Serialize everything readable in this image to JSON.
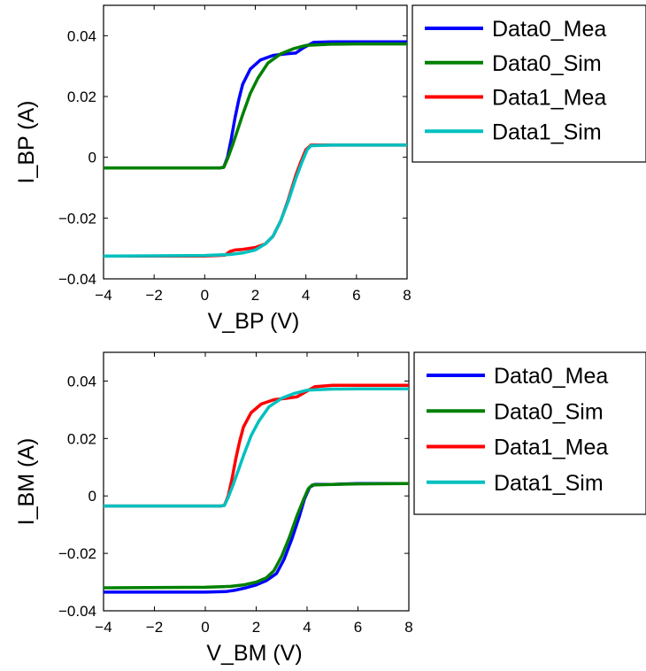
{
  "chart_data": [
    {
      "type": "line",
      "title": "",
      "xlabel": "V_BP (V)",
      "ylabel": "I_BP (A)",
      "xlim": [
        -4,
        8
      ],
      "ylim": [
        -0.04,
        0.05
      ],
      "xticks": [
        -4,
        -2,
        0,
        2,
        4,
        6,
        8
      ],
      "yticks": [
        -0.04,
        -0.02,
        0,
        0.02,
        0.04
      ],
      "xtick_labels": [
        "−4",
        "−2",
        "0",
        "2",
        "4",
        "6",
        "8"
      ],
      "ytick_labels": [
        "−0.04",
        "−0.02",
        "0",
        "0.02",
        "0.04"
      ],
      "grid": false,
      "legend_position": "outside-right",
      "series": [
        {
          "name": "Data0_Mea",
          "color": "#0000ff",
          "x": [
            -4,
            0,
            0.6,
            0.75,
            0.9,
            1.05,
            1.2,
            1.35,
            1.5,
            1.8,
            2.2,
            2.7,
            3.2,
            3.6,
            3.9,
            4.3,
            5,
            6,
            8
          ],
          "y": [
            -0.0035,
            -0.0035,
            -0.0035,
            -0.0033,
            0.0,
            0.006,
            0.013,
            0.019,
            0.024,
            0.029,
            0.032,
            0.0335,
            0.034,
            0.0343,
            0.036,
            0.0378,
            0.038,
            0.038,
            0.038
          ]
        },
        {
          "name": "Data0_Sim",
          "color": "#008000",
          "x": [
            -4,
            0,
            0.6,
            0.75,
            0.9,
            1.1,
            1.3,
            1.5,
            1.8,
            2.1,
            2.5,
            3.0,
            3.5,
            4.0,
            5,
            6,
            8
          ],
          "y": [
            -0.0035,
            -0.0035,
            -0.0035,
            -0.0033,
            -0.0005,
            0.004,
            0.009,
            0.014,
            0.021,
            0.026,
            0.031,
            0.034,
            0.0357,
            0.0368,
            0.0372,
            0.0373,
            0.0373
          ]
        },
        {
          "name": "Data1_Mea",
          "color": "#ff0000",
          "x": [
            -4,
            0,
            0.8,
            1.0,
            1.2,
            1.5,
            2.0,
            2.4,
            2.7,
            3.0,
            3.3,
            3.6,
            3.8,
            4.0,
            4.2,
            5,
            6,
            8
          ],
          "y": [
            -0.0325,
            -0.0325,
            -0.0322,
            -0.031,
            -0.0305,
            -0.0303,
            -0.0297,
            -0.0285,
            -0.026,
            -0.021,
            -0.014,
            -0.006,
            -0.0015,
            0.0025,
            0.004,
            0.004,
            0.004,
            0.004
          ]
        },
        {
          "name": "Data1_Sim",
          "color": "#00c0c0",
          "x": [
            -4,
            0,
            1.0,
            1.5,
            2.0,
            2.4,
            2.7,
            3.0,
            3.3,
            3.6,
            3.85,
            4.05,
            4.2,
            5,
            6,
            8
          ],
          "y": [
            -0.0325,
            -0.0323,
            -0.032,
            -0.0315,
            -0.0305,
            -0.0285,
            -0.026,
            -0.021,
            -0.0145,
            -0.007,
            -0.0015,
            0.0025,
            0.0038,
            0.004,
            0.004,
            0.004
          ]
        }
      ]
    },
    {
      "type": "line",
      "title": "",
      "xlabel": "V_BM (V)",
      "ylabel": "I_BM (A)",
      "xlim": [
        -4,
        8
      ],
      "ylim": [
        -0.04,
        0.05
      ],
      "xticks": [
        -4,
        -2,
        0,
        2,
        4,
        6,
        8
      ],
      "yticks": [
        -0.04,
        -0.02,
        0,
        0.02,
        0.04
      ],
      "xtick_labels": [
        "−4",
        "−2",
        "0",
        "2",
        "4",
        "6",
        "8"
      ],
      "ytick_labels": [
        "−0.04",
        "−0.02",
        "0",
        "0.02",
        "0.04"
      ],
      "grid": false,
      "legend_position": "outside-right",
      "series": [
        {
          "name": "Data0_Mea",
          "color": "#0000ff",
          "x": [
            -4,
            0,
            0.8,
            1.2,
            1.6,
            2.0,
            2.4,
            2.8,
            3.1,
            3.4,
            3.7,
            3.9,
            4.1,
            4.3,
            5,
            6,
            8
          ],
          "y": [
            -0.0335,
            -0.0335,
            -0.0333,
            -0.0328,
            -0.032,
            -0.031,
            -0.0295,
            -0.027,
            -0.022,
            -0.015,
            -0.007,
            -0.001,
            0.003,
            0.004,
            0.004,
            0.0043,
            0.0043
          ]
        },
        {
          "name": "Data0_Sim",
          "color": "#008000",
          "x": [
            -4,
            0,
            1.0,
            1.5,
            2.0,
            2.4,
            2.7,
            3.0,
            3.3,
            3.6,
            3.85,
            4.05,
            4.2,
            5,
            6,
            8
          ],
          "y": [
            -0.032,
            -0.0318,
            -0.0315,
            -0.031,
            -0.03,
            -0.0285,
            -0.026,
            -0.021,
            -0.0145,
            -0.007,
            -0.0015,
            0.0025,
            0.0038,
            0.004,
            0.0042,
            0.0043
          ]
        },
        {
          "name": "Data1_Mea",
          "color": "#ff0000",
          "x": [
            -4,
            0,
            0.6,
            0.75,
            0.9,
            1.05,
            1.2,
            1.35,
            1.5,
            1.8,
            2.2,
            2.7,
            3.2,
            3.6,
            3.9,
            4.3,
            5,
            6,
            8
          ],
          "y": [
            -0.0035,
            -0.0035,
            -0.0035,
            -0.0033,
            0.0,
            0.006,
            0.013,
            0.019,
            0.024,
            0.029,
            0.032,
            0.0335,
            0.034,
            0.0345,
            0.036,
            0.038,
            0.0385,
            0.0385,
            0.0385
          ]
        },
        {
          "name": "Data1_Sim",
          "color": "#00c0c0",
          "x": [
            -4,
            0,
            0.6,
            0.75,
            0.9,
            1.1,
            1.3,
            1.5,
            1.8,
            2.1,
            2.5,
            3.0,
            3.5,
            4.0,
            5,
            6,
            8
          ],
          "y": [
            -0.0035,
            -0.0035,
            -0.0035,
            -0.0033,
            -0.0005,
            0.004,
            0.009,
            0.014,
            0.021,
            0.026,
            0.031,
            0.034,
            0.0357,
            0.0368,
            0.0372,
            0.0373,
            0.0373
          ]
        }
      ]
    }
  ]
}
